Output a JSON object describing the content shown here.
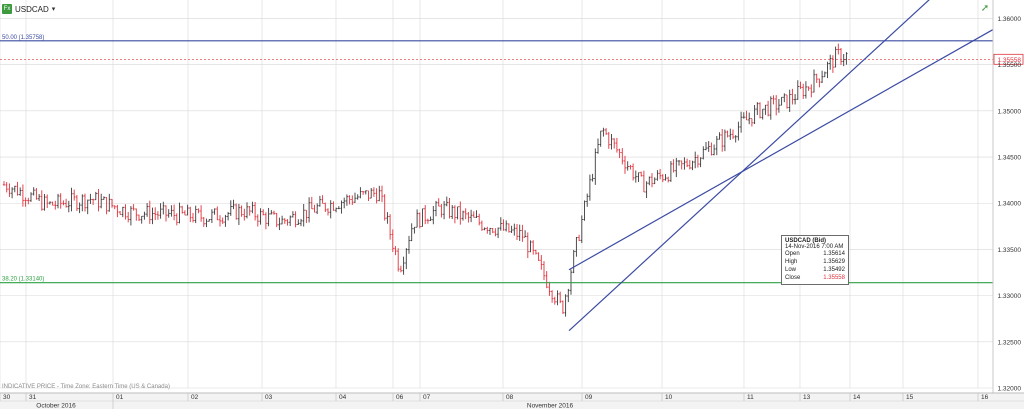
{
  "header": {
    "symbol_icon": "fx-icon",
    "symbol": "USDCAD",
    "caret": "▾",
    "corner_icon": "trend-arrow-icon"
  },
  "fib_levels": [
    {
      "label": "50.00 (1.35758)",
      "value": 1.35758,
      "color": "#3b4ba3"
    },
    {
      "label": "38.20 (1.33140)",
      "value": 1.3314,
      "color": "#2ea043"
    }
  ],
  "current_price": {
    "label": "1.35558",
    "value": 1.35558,
    "color": "#e0313b"
  },
  "info_box": {
    "title": "USDCAD (Bid)",
    "datetime": "14-Nov-2016 7:00 AM",
    "rows": [
      {
        "label": "Open",
        "value": "1.35614"
      },
      {
        "label": "High",
        "value": "1.35629"
      },
      {
        "label": "Low",
        "value": "1.35492"
      },
      {
        "label": "Close",
        "value": "1.35558"
      }
    ]
  },
  "footer": {
    "note": "INDICATIVE PRICE - Time Zone: Eastern Time (US & Canada)",
    "month_labels": [
      {
        "label": "October 2016",
        "x": "30"
      },
      {
        "label": "November 2016",
        "x": "08"
      }
    ]
  },
  "chart_data": {
    "type": "bar",
    "style": "ohlc",
    "colors": {
      "up": "#3a3a3a",
      "down": "#e0313b",
      "trendline": "#3b4ba3",
      "grid": "#d8d8d8"
    },
    "y_axis": {
      "side": "right",
      "ticks": [
        "1.36000",
        "1.35500",
        "1.35000",
        "1.34500",
        "1.34000",
        "1.33500",
        "1.33000",
        "1.32500",
        "1.32000"
      ],
      "ylim": [
        1.32,
        1.362
      ]
    },
    "x_axis": {
      "ticks": [
        "30",
        "31",
        "01",
        "02",
        "03",
        "04",
        "06",
        "07",
        "08",
        "09",
        "10",
        "11",
        "13",
        "14",
        "15",
        "16"
      ]
    },
    "trendlines": [
      {
        "from": [
          "08",
          1.3262
        ],
        "to": [
          "14",
          1.3635
        ]
      },
      {
        "from": [
          "08",
          1.3328
        ],
        "to": [
          "16",
          1.3588
        ]
      }
    ],
    "series_path": [
      [
        "30",
        1.342
      ],
      [
        "30",
        1.3413
      ],
      [
        "31",
        1.3398
      ],
      [
        "31",
        1.3405
      ],
      [
        "01",
        1.339
      ],
      [
        "01",
        1.3388
      ],
      [
        "02",
        1.3385
      ],
      [
        "02",
        1.3392
      ],
      [
        "03",
        1.338
      ],
      [
        "03",
        1.3395
      ],
      [
        "04",
        1.3405
      ],
      [
        "04",
        1.3412
      ],
      [
        "06",
        1.333
      ],
      [
        "06",
        1.338
      ],
      [
        "07",
        1.3395
      ],
      [
        "07",
        1.3378
      ],
      [
        "08",
        1.3365
      ],
      [
        "08",
        1.3285
      ],
      [
        "09",
        1.348
      ],
      [
        "09",
        1.342
      ],
      [
        "10",
        1.344
      ],
      [
        "10",
        1.347
      ],
      [
        "11",
        1.35
      ],
      [
        "11",
        1.351
      ],
      [
        "13",
        1.353
      ],
      [
        "13",
        1.356
      ],
      [
        "14",
        1.3558
      ]
    ]
  }
}
